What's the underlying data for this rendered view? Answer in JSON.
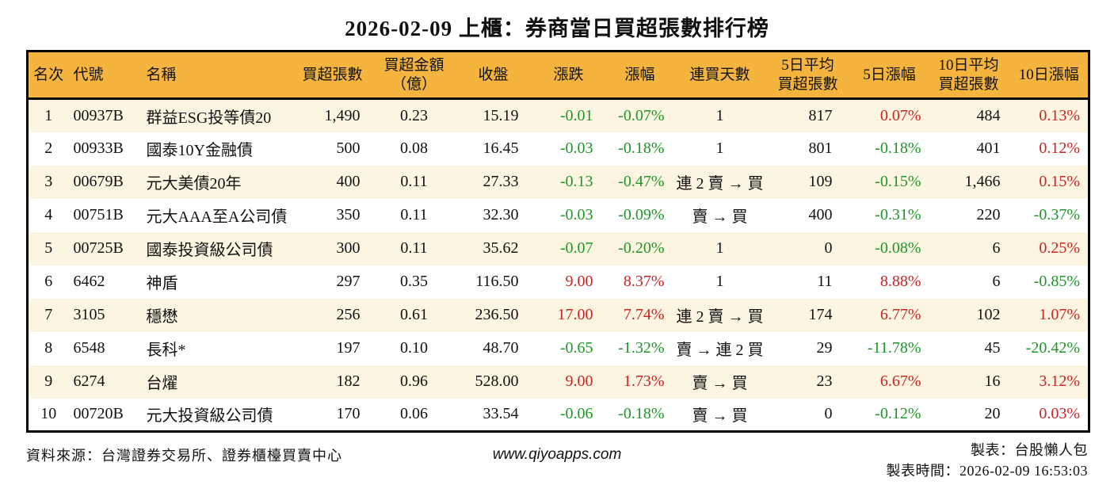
{
  "title": "2026-02-09 上櫃：券商當日買超張數排行榜",
  "colors": {
    "header_bg": "#F4B43E",
    "row_alt_bg": "#FCF5E2",
    "up_red": "#CC2222",
    "down_green": "#1E9628"
  },
  "table": {
    "headers": [
      "名次",
      "代號",
      "名稱",
      "買超張數",
      "買超金額\n（億）",
      "收盤",
      "漲跌",
      "漲幅",
      "連買天數",
      "5日平均\n買超張數",
      "5日漲幅",
      "10日平均\n買超張數",
      "10日漲幅"
    ],
    "rows": [
      {
        "rank": "1",
        "code": "00937B",
        "name": "群益ESG投等債20",
        "buy_volume": "1,490",
        "buy_amount": "0.23",
        "close": "15.19",
        "change": "-0.01",
        "change_pct": "-0.07%",
        "change_dir": "down",
        "streak": "1",
        "avg5": "817",
        "pct5": "0.07%",
        "pct5_dir": "up",
        "avg10": "484",
        "pct10": "0.13%",
        "pct10_dir": "up"
      },
      {
        "rank": "2",
        "code": "00933B",
        "name": "國泰10Y金融債",
        "buy_volume": "500",
        "buy_amount": "0.08",
        "close": "16.45",
        "change": "-0.03",
        "change_pct": "-0.18%",
        "change_dir": "down",
        "streak": "1",
        "avg5": "801",
        "pct5": "-0.18%",
        "pct5_dir": "down",
        "avg10": "401",
        "pct10": "0.12%",
        "pct10_dir": "up"
      },
      {
        "rank": "3",
        "code": "00679B",
        "name": "元大美債20年",
        "buy_volume": "400",
        "buy_amount": "0.11",
        "close": "27.33",
        "change": "-0.13",
        "change_pct": "-0.47%",
        "change_dir": "down",
        "streak": "連 2 賣 → 買",
        "avg5": "109",
        "pct5": "-0.15%",
        "pct5_dir": "down",
        "avg10": "1,466",
        "pct10": "0.15%",
        "pct10_dir": "up"
      },
      {
        "rank": "4",
        "code": "00751B",
        "name": "元大AAA至A公司債",
        "buy_volume": "350",
        "buy_amount": "0.11",
        "close": "32.30",
        "change": "-0.03",
        "change_pct": "-0.09%",
        "change_dir": "down",
        "streak": "賣 → 買",
        "avg5": "400",
        "pct5": "-0.31%",
        "pct5_dir": "down",
        "avg10": "220",
        "pct10": "-0.37%",
        "pct10_dir": "down"
      },
      {
        "rank": "5",
        "code": "00725B",
        "name": "國泰投資級公司債",
        "buy_volume": "300",
        "buy_amount": "0.11",
        "close": "35.62",
        "change": "-0.07",
        "change_pct": "-0.20%",
        "change_dir": "down",
        "streak": "1",
        "avg5": "0",
        "pct5": "-0.08%",
        "pct5_dir": "down",
        "avg10": "6",
        "pct10": "0.25%",
        "pct10_dir": "up"
      },
      {
        "rank": "6",
        "code": "6462",
        "name": "神盾",
        "buy_volume": "297",
        "buy_amount": "0.35",
        "close": "116.50",
        "change": "9.00",
        "change_pct": "8.37%",
        "change_dir": "up",
        "streak": "1",
        "avg5": "11",
        "pct5": "8.88%",
        "pct5_dir": "up",
        "avg10": "6",
        "pct10": "-0.85%",
        "pct10_dir": "down"
      },
      {
        "rank": "7",
        "code": "3105",
        "name": "穩懋",
        "buy_volume": "256",
        "buy_amount": "0.61",
        "close": "236.50",
        "change": "17.00",
        "change_pct": "7.74%",
        "change_dir": "up",
        "streak": "連 2 賣 → 買",
        "avg5": "174",
        "pct5": "6.77%",
        "pct5_dir": "up",
        "avg10": "102",
        "pct10": "1.07%",
        "pct10_dir": "up"
      },
      {
        "rank": "8",
        "code": "6548",
        "name": "長科*",
        "buy_volume": "197",
        "buy_amount": "0.10",
        "close": "48.70",
        "change": "-0.65",
        "change_pct": "-1.32%",
        "change_dir": "down",
        "streak": "賣 → 連 2 買",
        "avg5": "29",
        "pct5": "-11.78%",
        "pct5_dir": "down",
        "avg10": "45",
        "pct10": "-20.42%",
        "pct10_dir": "down"
      },
      {
        "rank": "9",
        "code": "6274",
        "name": "台燿",
        "buy_volume": "182",
        "buy_amount": "0.96",
        "close": "528.00",
        "change": "9.00",
        "change_pct": "1.73%",
        "change_dir": "up",
        "streak": "賣 → 買",
        "avg5": "23",
        "pct5": "6.67%",
        "pct5_dir": "up",
        "avg10": "16",
        "pct10": "3.12%",
        "pct10_dir": "up"
      },
      {
        "rank": "10",
        "code": "00720B",
        "name": "元大投資級公司債",
        "buy_volume": "170",
        "buy_amount": "0.06",
        "close": "33.54",
        "change": "-0.06",
        "change_pct": "-0.18%",
        "change_dir": "down",
        "streak": "賣 → 買",
        "avg5": "0",
        "pct5": "-0.12%",
        "pct5_dir": "down",
        "avg10": "20",
        "pct10": "0.03%",
        "pct10_dir": "up"
      }
    ]
  },
  "footer": {
    "source": "資料來源：台灣證券交易所、證券櫃檯買賣中心",
    "website": "www.qiyoapps.com",
    "maker": "製表：台股懶人包",
    "made_time": "製表時間：2026-02-09 16:53:03"
  }
}
